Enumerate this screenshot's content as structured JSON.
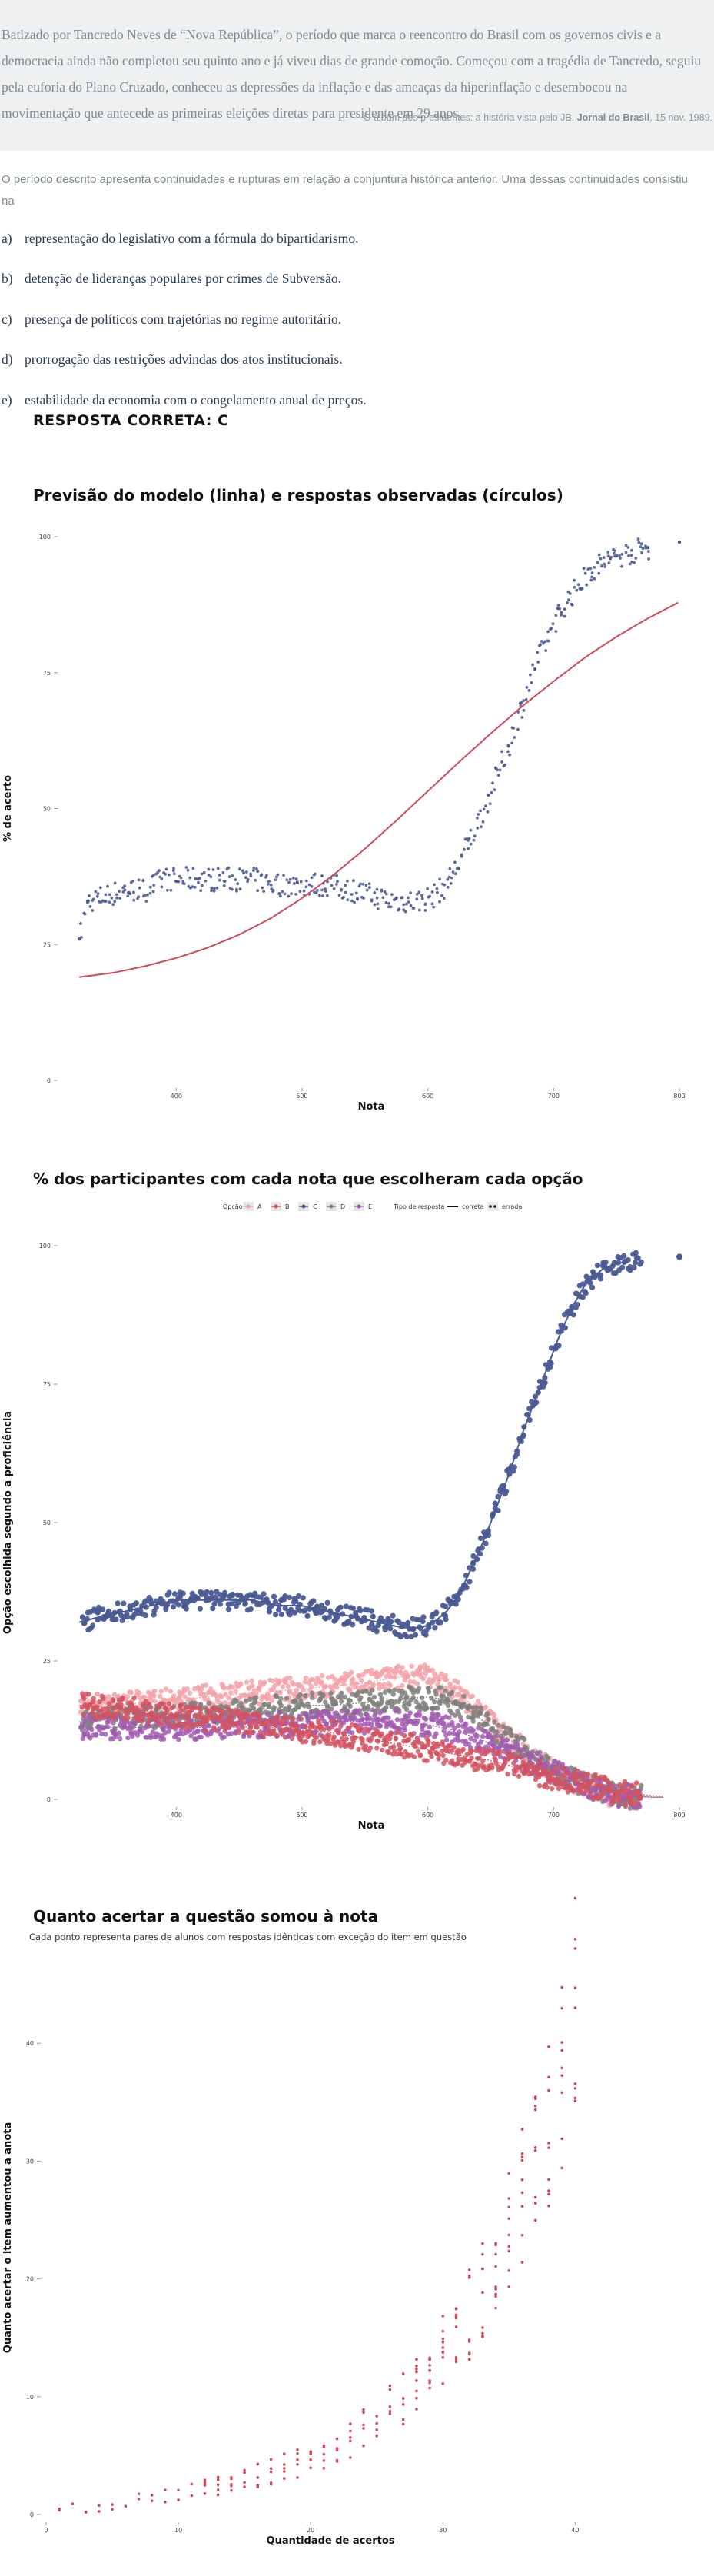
{
  "question": {
    "text_block": "Batizado por Tancredo Neves de “Nova República”, o período que marca o reencontro do Brasil com os governos civis e a democracia ainda não completou seu quinto ano e já viveu dias de grande comoção. Começou com a tragédia de Tancredo, seguiu pela euforia do Plano Cruzado, conheceu as depressões da inflação e das ameaças da hiperinflação e desembocou na movimentação que antecede as primeiras eleições diretas para presidente em 29 anos.",
    "source_prefix": "O álbum dos presidentes: a história vista pelo JB.",
    "source_bold": "Jornal do Brasil",
    "source_suffix": ", 15 nov. 1989.",
    "stem": "O período descrito apresenta continuidades e rupturas em relação à conjuntura histórica anterior. Uma dessas continuidades consistiu na",
    "options": [
      {
        "letter": "a)",
        "text": "representação do legislativo com a fórmula do bipartidarismo."
      },
      {
        "letter": "b)",
        "text": "detenção de lideranças populares por crimes de Subversão."
      },
      {
        "letter": "c)",
        "text": "presença de políticos com trajetórias no regime autoritário."
      },
      {
        "letter": "d)",
        "text": "prorrogação das restrições advindas dos atos institucionais."
      },
      {
        "letter": "e)",
        "text": "estabilidade da economia com o congelamento anual de preços."
      }
    ],
    "answer": "RESPOSTA CORRETA: C"
  },
  "colors": {
    "navy": "#4a5a92",
    "red": "#cf4a5b",
    "A": "#f4a2a9",
    "B": "#d3525f",
    "C": "#4a5a92",
    "D": "#7f807d",
    "E": "#a25ab2"
  },
  "chart_data": [
    {
      "type": "scatter",
      "title": "Previsão do modelo (linha) e respostas observadas (círculos)",
      "xlabel": "Nota",
      "ylabel": "% de acerto",
      "x_ticks": [
        400,
        500,
        600,
        700,
        800
      ],
      "y_ticks": [
        0,
        25,
        50,
        75,
        100
      ],
      "xlim": [
        310,
        800
      ],
      "ylim": [
        0,
        100
      ],
      "series": [
        {
          "kind": "points",
          "points": [
            [
              323,
              26
            ],
            [
              330,
              33
            ],
            [
              345,
              34
            ],
            [
              360,
              35
            ],
            [
              375,
              35
            ],
            [
              390,
              37
            ],
            [
              405,
              37
            ],
            [
              420,
              37
            ],
            [
              440,
              37
            ],
            [
              460,
              37
            ],
            [
              480,
              36
            ],
            [
              500,
              36
            ],
            [
              520,
              36
            ],
            [
              540,
              35
            ],
            [
              555,
              34
            ],
            [
              570,
              33
            ],
            [
              585,
              33
            ],
            [
              595,
              33
            ],
            [
              605,
              34
            ],
            [
              615,
              36
            ],
            [
              625,
              40
            ],
            [
              635,
              45
            ],
            [
              645,
              50
            ],
            [
              655,
              56
            ],
            [
              665,
              62
            ],
            [
              675,
              69
            ],
            [
              685,
              76
            ],
            [
              693,
              80
            ],
            [
              700,
              84
            ],
            [
              710,
              88
            ],
            [
              720,
              91
            ],
            [
              730,
              94
            ],
            [
              745,
              96
            ],
            [
              775,
              98
            ],
            [
              800,
              99
            ]
          ]
        },
        {
          "kind": "line",
          "points": [
            [
              323,
              19
            ],
            [
              350,
              19.8
            ],
            [
              375,
              21
            ],
            [
              400,
              22.5
            ],
            [
              425,
              24.4
            ],
            [
              450,
              26.8
            ],
            [
              475,
              29.8
            ],
            [
              500,
              33.5
            ],
            [
              525,
              37.8
            ],
            [
              550,
              42.6
            ],
            [
              575,
              47.8
            ],
            [
              600,
              53.2
            ],
            [
              625,
              58.6
            ],
            [
              650,
              63.8
            ],
            [
              675,
              68.8
            ],
            [
              700,
              73.4
            ],
            [
              725,
              77.8
            ],
            [
              750,
              81.6
            ],
            [
              775,
              85
            ],
            [
              800,
              88
            ]
          ]
        }
      ]
    },
    {
      "type": "scatter",
      "title": "% dos participantes com cada nota que escolheram cada opção",
      "xlabel": "Nota",
      "ylabel": "Opção escolhida segundo a proficiência",
      "legend": {
        "option_title": "Opção",
        "options": [
          "A",
          "B",
          "C",
          "D",
          "E"
        ],
        "type_title": "Tipo de resposta",
        "types": [
          "correta",
          "errada"
        ],
        "position": "top-center"
      },
      "x_ticks": [
        400,
        500,
        600,
        700,
        800
      ],
      "y_ticks": [
        0,
        25,
        50,
        75,
        100
      ],
      "xlim": [
        310,
        800
      ],
      "ylim": [
        0,
        100
      ],
      "series": [
        {
          "name": "C",
          "role": "correta",
          "points": [
            [
              323,
              32
            ],
            [
              340,
              33
            ],
            [
              360,
              34
            ],
            [
              380,
              35
            ],
            [
              400,
              36
            ],
            [
              420,
              36
            ],
            [
              440,
              36
            ],
            [
              460,
              36
            ],
            [
              480,
              35
            ],
            [
              500,
              35
            ],
            [
              520,
              34
            ],
            [
              540,
              33
            ],
            [
              560,
              32
            ],
            [
              580,
              31
            ],
            [
              595,
              31
            ],
            [
              605,
              32
            ],
            [
              615,
              34
            ],
            [
              625,
              37
            ],
            [
              635,
              42
            ],
            [
              645,
              47
            ],
            [
              655,
              53
            ],
            [
              665,
              59
            ],
            [
              675,
              66
            ],
            [
              685,
              72
            ],
            [
              695,
              78
            ],
            [
              705,
              84
            ],
            [
              715,
              89
            ],
            [
              725,
              93
            ],
            [
              740,
              96
            ],
            [
              755,
              97
            ],
            [
              800,
              98
            ]
          ]
        },
        {
          "name": "A",
          "role": "errada",
          "points": [
            [
              323,
              17
            ],
            [
              350,
              17
            ],
            [
              375,
              17.5
            ],
            [
              400,
              18
            ],
            [
              425,
              18.5
            ],
            [
              450,
              19
            ],
            [
              475,
              19.5
            ],
            [
              500,
              20
            ],
            [
              525,
              20.5
            ],
            [
              550,
              21
            ],
            [
              575,
              22
            ],
            [
              590,
              22.5
            ],
            [
              600,
              22
            ],
            [
              610,
              21
            ],
            [
              625,
              19
            ],
            [
              640,
              16
            ],
            [
              655,
              13
            ],
            [
              670,
              10
            ],
            [
              685,
              7.5
            ],
            [
              700,
              5
            ],
            [
              715,
              3.5
            ],
            [
              730,
              2
            ],
            [
              745,
              1
            ],
            [
              760,
              0.5
            ],
            [
              800,
              0.3
            ]
          ]
        },
        {
          "name": "D",
          "role": "errada",
          "points": [
            [
              323,
              14
            ],
            [
              350,
              14.5
            ],
            [
              375,
              15
            ],
            [
              400,
              15
            ],
            [
              425,
              15.5
            ],
            [
              450,
              16
            ],
            [
              475,
              16.5
            ],
            [
              500,
              17
            ],
            [
              525,
              17
            ],
            [
              550,
              17.5
            ],
            [
              575,
              18
            ],
            [
              600,
              18.5
            ],
            [
              615,
              18
            ],
            [
              630,
              16.5
            ],
            [
              645,
              14
            ],
            [
              660,
              11.5
            ],
            [
              675,
              9
            ],
            [
              690,
              6.5
            ],
            [
              705,
              4.5
            ],
            [
              720,
              3
            ],
            [
              740,
              1.5
            ],
            [
              760,
              0.5
            ],
            [
              800,
              0.3
            ]
          ]
        },
        {
          "name": "E",
          "role": "errada",
          "points": [
            [
              323,
              13
            ],
            [
              350,
              13
            ],
            [
              375,
              13
            ],
            [
              400,
              13
            ],
            [
              425,
              13
            ],
            [
              450,
              13
            ],
            [
              475,
              13.5
            ],
            [
              500,
              13.5
            ],
            [
              525,
              14
            ],
            [
              550,
              14
            ],
            [
              575,
              14
            ],
            [
              600,
              13.5
            ],
            [
              620,
              12.5
            ],
            [
              640,
              11
            ],
            [
              660,
              9
            ],
            [
              680,
              7
            ],
            [
              700,
              5
            ],
            [
              720,
              3
            ],
            [
              740,
              1.5
            ],
            [
              760,
              0.5
            ],
            [
              800,
              0.3
            ]
          ]
        },
        {
          "name": "B",
          "role": "errada",
          "points": [
            [
              323,
              17
            ],
            [
              350,
              16.5
            ],
            [
              375,
              16
            ],
            [
              400,
              15
            ],
            [
              425,
              14.5
            ],
            [
              450,
              14
            ],
            [
              475,
              13
            ],
            [
              500,
              12.5
            ],
            [
              525,
              12
            ],
            [
              550,
              11
            ],
            [
              575,
              10
            ],
            [
              600,
              9
            ],
            [
              625,
              8
            ],
            [
              650,
              7
            ],
            [
              675,
              5.5
            ],
            [
              700,
              4
            ],
            [
              720,
              3
            ],
            [
              740,
              2
            ],
            [
              760,
              1
            ],
            [
              800,
              0.3
            ]
          ]
        }
      ]
    },
    {
      "type": "scatter",
      "title": "Quanto acertar a questão somou à nota",
      "subtitle": "Cada ponto representa pares de alunos com respostas idênticas com exceção do item em questão",
      "xlabel": "Quantidade de acertos",
      "ylabel": "Quanto acertar o item aumentou a anota",
      "x_ticks": [
        0,
        10,
        20,
        30,
        40
      ],
      "y_ticks": [
        0,
        10,
        20,
        30,
        40
      ],
      "xlim": [
        0,
        43
      ],
      "ylim": [
        0,
        47
      ],
      "points": [
        [
          1,
          0.4
        ],
        [
          2,
          0.5
        ],
        [
          3,
          0.6
        ],
        [
          4,
          0.7
        ],
        [
          5,
          0.8
        ],
        [
          6,
          1.0
        ],
        [
          7,
          1.2
        ],
        [
          8,
          1.4
        ],
        [
          9,
          1.6
        ],
        [
          10,
          1.8
        ],
        [
          11,
          2.0
        ],
        [
          12,
          2.2
        ],
        [
          13,
          2.4
        ],
        [
          14,
          2.7
        ],
        [
          15,
          3.0
        ],
        [
          16,
          3.3
        ],
        [
          17,
          3.6
        ],
        [
          18,
          4.0
        ],
        [
          19,
          4.4
        ],
        [
          20,
          4.8
        ],
        [
          21,
          5.3
        ],
        [
          22,
          5.8
        ],
        [
          23,
          6.4
        ],
        [
          24,
          7.1
        ],
        [
          25,
          7.9
        ],
        [
          26,
          8.8
        ],
        [
          27,
          9.8
        ],
        [
          28,
          10.9
        ],
        [
          29,
          12.2
        ],
        [
          30,
          13.6
        ],
        [
          31,
          15.2
        ],
        [
          32,
          17.0
        ],
        [
          33,
          19.0
        ],
        [
          34,
          21.3
        ],
        [
          35,
          23.8
        ],
        [
          36,
          26.6
        ],
        [
          37,
          29.8
        ],
        [
          38,
          33.4
        ],
        [
          39,
          37.5
        ],
        [
          40,
          43
        ]
      ]
    }
  ]
}
